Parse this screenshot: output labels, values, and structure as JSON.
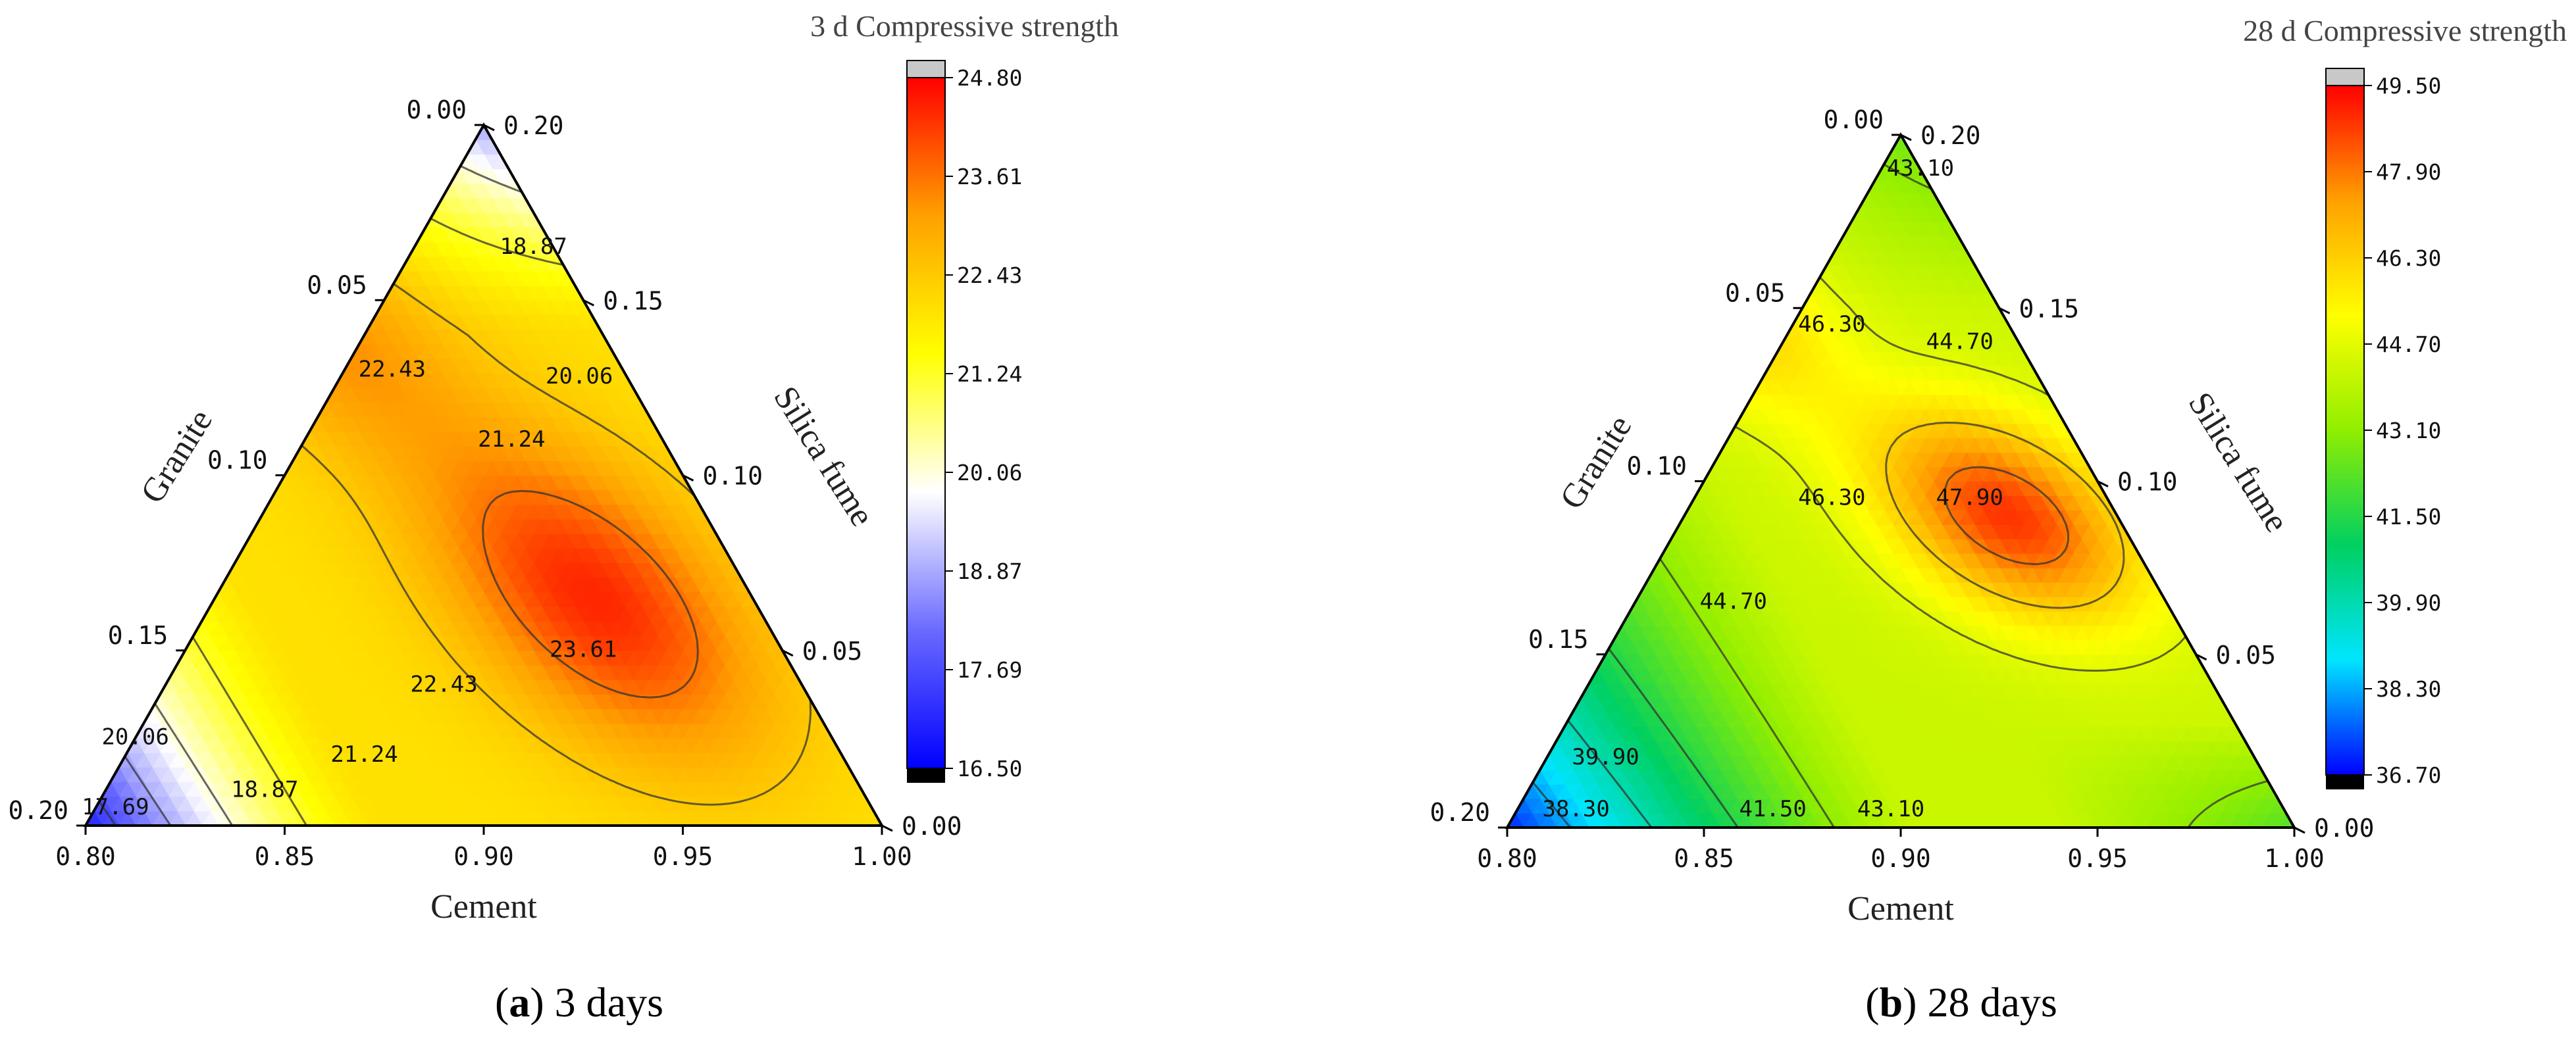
{
  "chart_data": [
    {
      "type": "heatmap",
      "subtype": "ternary-contour",
      "title": "3 d Compressive strength",
      "caption_letter": "a",
      "caption_text": " 3 days",
      "axes": {
        "bottom": {
          "label": "Cement",
          "ticks": [
            "0.80",
            "0.85",
            "0.90",
            "0.95",
            "1.00"
          ],
          "range": [
            0.8,
            1.0
          ]
        },
        "left": {
          "label": "Granite",
          "ticks": [
            "0.20",
            "0.15",
            "0.10",
            "0.05",
            "0.00"
          ],
          "range": [
            0.0,
            0.2
          ]
        },
        "right": {
          "label": "Silica fume",
          "ticks": [
            "0.00",
            "0.05",
            "0.10",
            "0.15",
            "0.20"
          ],
          "range": [
            0.0,
            0.2
          ]
        }
      },
      "colorbar": {
        "min": 16.5,
        "max": 24.8,
        "ticks": [
          "24.80",
          "23.61",
          "22.43",
          "21.24",
          "20.06",
          "18.87",
          "17.69",
          "16.50"
        ],
        "colors": [
          "#0000ff",
          "#6a6aff",
          "#ffffff",
          "#ffff00",
          "#ffa000",
          "#ff0000"
        ]
      },
      "contour_labels": [
        {
          "text": "18.87",
          "g": 0.005,
          "s": 0.165
        },
        {
          "text": "20.06",
          "g": 0.012,
          "s": 0.128
        },
        {
          "text": "21.24",
          "g": 0.038,
          "s": 0.11
        },
        {
          "text": "22.43",
          "g": 0.058,
          "s": 0.13
        },
        {
          "text": "23.61",
          "g": 0.05,
          "s": 0.05
        },
        {
          "text": "22.43",
          "g": 0.09,
          "s": 0.04
        },
        {
          "text": "21.24",
          "g": 0.12,
          "s": 0.02
        },
        {
          "text": "20.06",
          "g": 0.175,
          "s": 0.025
        },
        {
          "text": "18.87",
          "g": 0.15,
          "s": 0.01
        },
        {
          "text": "17.69",
          "g": 0.19,
          "s": 0.005
        }
      ]
    },
    {
      "type": "heatmap",
      "subtype": "ternary-contour",
      "title": "28 d Compressive strength",
      "caption_letter": "b",
      "caption_text": " 28 days",
      "axes": {
        "bottom": {
          "label": "Cement",
          "ticks": [
            "0.80",
            "0.85",
            "0.90",
            "0.95",
            "1.00"
          ],
          "range": [
            0.8,
            1.0
          ]
        },
        "left": {
          "label": "Granite",
          "ticks": [
            "0.20",
            "0.15",
            "0.10",
            "0.05",
            "0.00"
          ],
          "range": [
            0.0,
            0.2
          ]
        },
        "right": {
          "label": "Silica fume",
          "ticks": [
            "0.00",
            "0.05",
            "0.10",
            "0.15",
            "0.20"
          ],
          "range": [
            0.0,
            0.2
          ]
        }
      },
      "colorbar": {
        "min": 36.7,
        "max": 49.5,
        "ticks": [
          "49.50",
          "47.90",
          "46.30",
          "44.70",
          "43.10",
          "41.50",
          "39.90",
          "38.30",
          "36.70"
        ],
        "colors": [
          "#0000ff",
          "#00e5ff",
          "#00d060",
          "#90ee00",
          "#ffff00",
          "#ffa000",
          "#ff0000"
        ]
      },
      "contour_labels": [
        {
          "text": "43.10",
          "g": 0.0,
          "s": 0.19
        },
        {
          "text": "46.30",
          "g": 0.045,
          "s": 0.145
        },
        {
          "text": "44.70",
          "g": 0.015,
          "s": 0.14
        },
        {
          "text": "47.90",
          "g": 0.035,
          "s": 0.095
        },
        {
          "text": "46.30",
          "g": 0.07,
          "s": 0.095
        },
        {
          "text": "44.70",
          "g": 0.11,
          "s": 0.065
        },
        {
          "text": "39.90",
          "g": 0.165,
          "s": 0.02
        },
        {
          "text": "38.30",
          "g": 0.18,
          "s": 0.005
        },
        {
          "text": "41.50",
          "g": 0.13,
          "s": 0.005
        },
        {
          "text": "43.10",
          "g": 0.1,
          "s": 0.005
        }
      ]
    }
  ]
}
